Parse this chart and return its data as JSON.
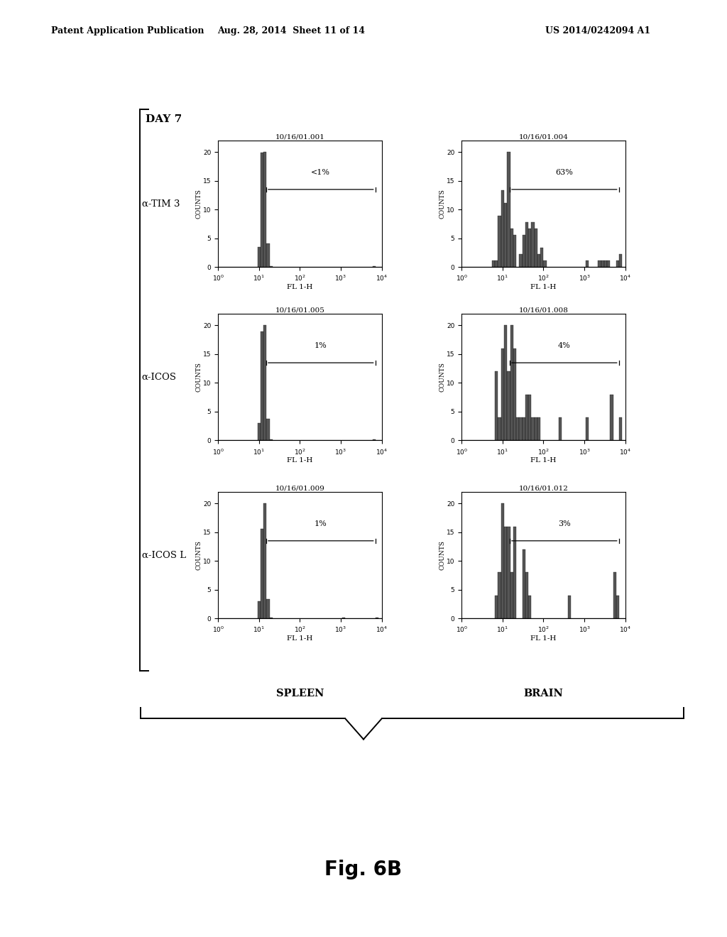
{
  "header_left": "Patent Application Publication",
  "header_center": "Aug. 28, 2014  Sheet 11 of 14",
  "header_right": "US 2014/0242094 A1",
  "figure_label": "Fig. 6B",
  "day_label": "DAY 7",
  "row_labels": [
    "α-TIM 3",
    "α-ICOS",
    "α-ICOS L"
  ],
  "col_labels": [
    "SPLEEN",
    "BRAIN"
  ],
  "plot_titles": [
    [
      "10/16/01.001",
      "10/16/01.004"
    ],
    [
      "10/16/01.005",
      "10/16/01.008"
    ],
    [
      "10/16/01.009",
      "10/16/01.012"
    ]
  ],
  "percentages": [
    [
      "<1%",
      "63%"
    ],
    [
      "1%",
      "4%"
    ],
    [
      "1%",
      "3%"
    ]
  ],
  "xlabel": "FL 1-H",
  "ylabel": "COUNTS",
  "ylim": [
    0,
    22
  ],
  "yticks": [
    0,
    5,
    10,
    15,
    20
  ],
  "bg_color": "#ffffff",
  "plot_bg": "#ffffff",
  "hist_color": "#444444"
}
